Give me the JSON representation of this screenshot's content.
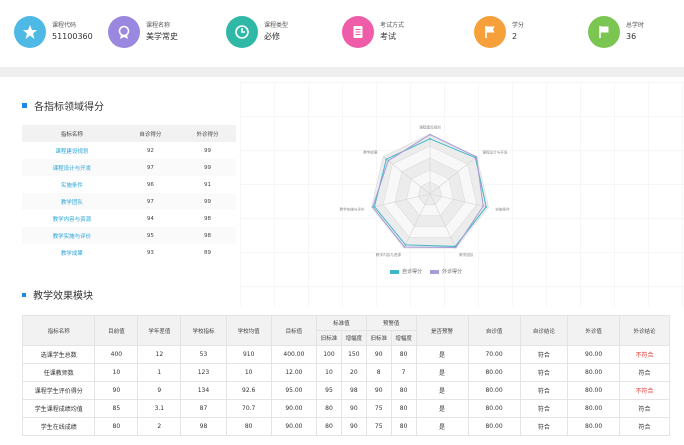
{
  "stats": [
    {
      "label": "课程代码",
      "value": "51100360",
      "color": "#4fb9e6",
      "icon": "star-icon"
    },
    {
      "label": "课程名称",
      "value": "美学常史",
      "color": "#9a88e0",
      "icon": "badge-icon"
    },
    {
      "label": "课程类型",
      "value": "必修",
      "color": "#2fb8a6",
      "icon": "clock-icon"
    },
    {
      "label": "考试方式",
      "value": "考试",
      "color": "#ef5da8",
      "icon": "document-icon"
    },
    {
      "label": "学分",
      "value": "2",
      "color": "#f6a03b",
      "icon": "flag-icon"
    },
    {
      "label": "总学时",
      "value": "36",
      "color": "#7bc652",
      "icon": "flag-icon"
    }
  ],
  "section1": {
    "title": "各指标领域得分"
  },
  "score_table": {
    "headers": [
      "指标名称",
      "自诊得分",
      "外诊得分"
    ],
    "rows": [
      [
        "课程建设规划",
        "92",
        "99"
      ],
      [
        "课程设计与开发",
        "97",
        "99"
      ],
      [
        "实施条件",
        "96",
        "91"
      ],
      [
        "教学团队",
        "97",
        "99"
      ],
      [
        "教学内容与资源",
        "94",
        "98"
      ],
      [
        "教学实施与评价",
        "95",
        "98"
      ],
      [
        "教学成果",
        "93",
        "89"
      ]
    ]
  },
  "radar": {
    "axes": [
      "课程建设规划",
      "课程设计与开发",
      "实施条件",
      "教学团队",
      "教学内容与资源",
      "教学实施与评价",
      "教学成果"
    ],
    "series": [
      {
        "name": "自诊得分",
        "values": [
          92,
          97,
          96,
          97,
          94,
          95,
          93
        ],
        "color": "#3fb6c6"
      },
      {
        "name": "外诊得分",
        "values": [
          99,
          99,
          91,
          99,
          98,
          98,
          89
        ],
        "color": "#a99ad8"
      }
    ],
    "max": 100
  },
  "section2": {
    "title": "教学效果模块"
  },
  "effect_table": {
    "headers": [
      "指标名称",
      "目前值",
      "学年差值",
      "学校指标",
      "学校均值",
      "目标值",
      "标准值",
      "预警值",
      "是否预警",
      "自诊值",
      "自诊结论",
      "外诊值",
      "外诊结论"
    ],
    "sub_headers": [
      "旧标准",
      "增幅度",
      "旧标准",
      "增幅度"
    ],
    "rows": [
      [
        "选课学生总数",
        "400",
        "12",
        "53",
        "910",
        "400.00",
        "100",
        "150",
        "90",
        "80",
        "是",
        "70.00",
        "符合",
        "90.00",
        "不符合"
      ],
      [
        "任课教师数",
        "10",
        "1",
        "123",
        "10",
        "12.00",
        "10",
        "20",
        "8",
        "7",
        "是",
        "80.00",
        "符合",
        "80.00",
        "符合"
      ],
      [
        "课程学生评价得分",
        "90",
        "9",
        "134",
        "92.6",
        "95.00",
        "95",
        "98",
        "90",
        "80",
        "是",
        "80.00",
        "符合",
        "80.00",
        "不符合"
      ],
      [
        "学生课程成绩均值",
        "85",
        "3.1",
        "87",
        "70.7",
        "90.00",
        "80",
        "90",
        "75",
        "80",
        "是",
        "80.00",
        "符合",
        "80.00",
        "符合"
      ],
      [
        "学生在线成绩",
        "80",
        "2",
        "98",
        "80",
        "90.00",
        "80",
        "90",
        "75",
        "80",
        "是",
        "80.00",
        "符合",
        "80.00",
        "符合"
      ]
    ]
  }
}
